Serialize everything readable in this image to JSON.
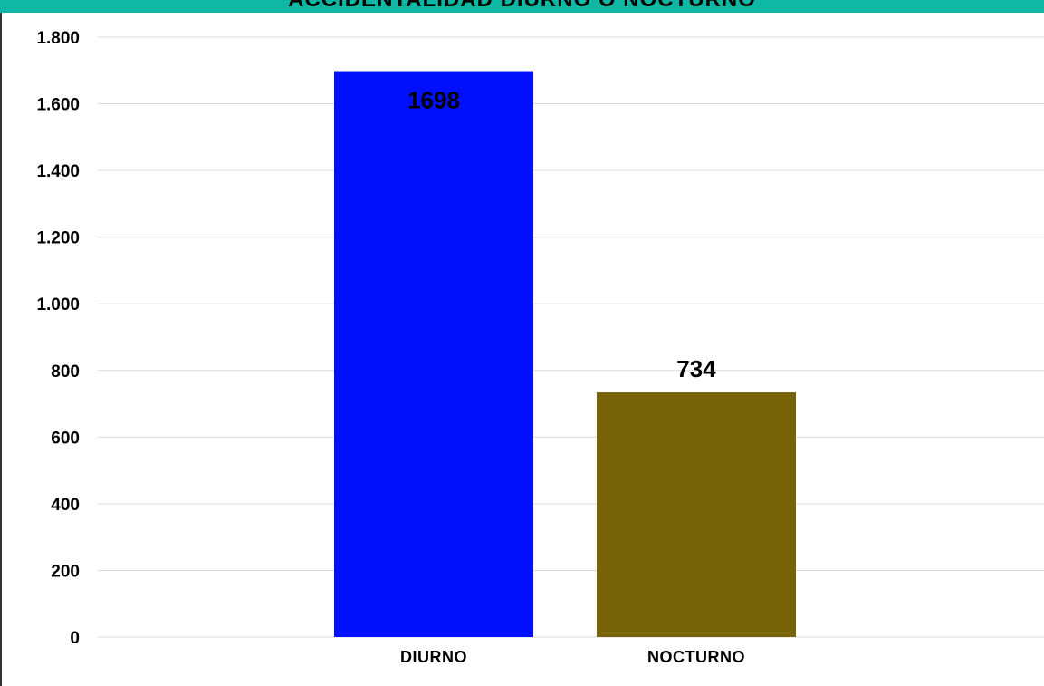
{
  "chart_data": {
    "type": "bar",
    "title": "ACCIDENTALIDAD DIURNO O NOCTURNO",
    "categories": [
      "DIURNO",
      "NOCTURNO"
    ],
    "values": [
      1698,
      734
    ],
    "data_labels": [
      "1698",
      "734"
    ],
    "colors": [
      "#0010ff",
      "#786309"
    ],
    "ylim": [
      0,
      1800
    ],
    "yticks": [
      0,
      200,
      400,
      600,
      800,
      1000,
      1200,
      1400,
      1600,
      1800
    ],
    "ytick_labels": [
      "0",
      "200",
      "400",
      "600",
      "800",
      "1.000",
      "1.200",
      "1.400",
      "1.600",
      "1.800"
    ],
    "xlabel": "",
    "ylabel": "",
    "grid": true,
    "title_color": "#0fb8a4"
  }
}
